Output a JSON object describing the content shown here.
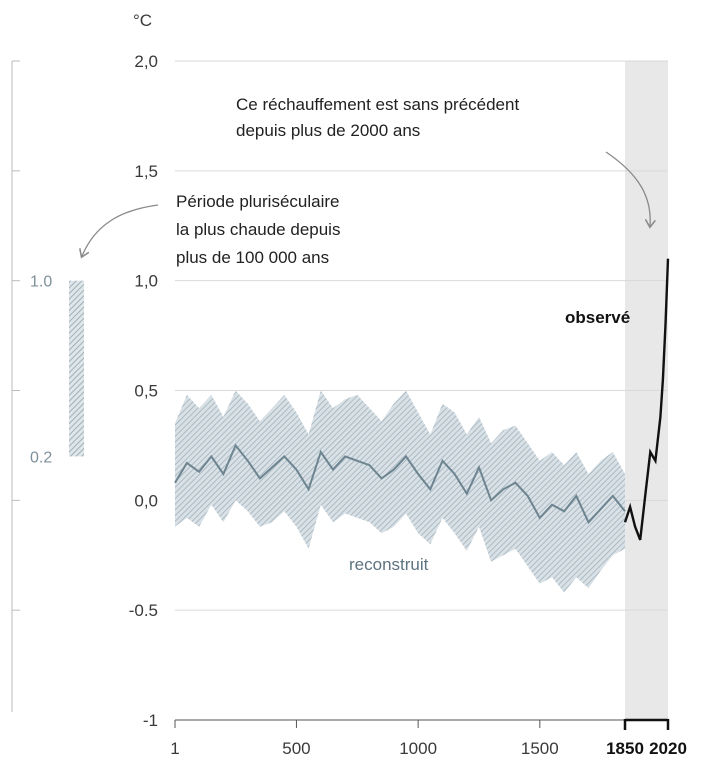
{
  "chart_data": {
    "type": "line",
    "unit": "°C",
    "ylim": [
      -1,
      2
    ],
    "xlim": [
      1,
      2020
    ],
    "y_ticks": [
      {
        "value": 2.0,
        "label": "2,0"
      },
      {
        "value": 1.5,
        "label": "1,5"
      },
      {
        "value": 1.0,
        "label": "1,0"
      },
      {
        "value": 0.5,
        "label": "0,5"
      },
      {
        "value": 0.0,
        "label": "0,0"
      },
      {
        "value": -0.5,
        "label": "-0.5"
      },
      {
        "value": -1.0,
        "label": "-1"
      }
    ],
    "x_ticks": [
      {
        "value": 1,
        "label": "1",
        "bold": false
      },
      {
        "value": 500,
        "label": "500",
        "bold": false
      },
      {
        "value": 1000,
        "label": "1000",
        "bold": false
      },
      {
        "value": 1500,
        "label": "1500",
        "bold": false
      },
      {
        "value": 1850,
        "label": "1850",
        "bold": true
      },
      {
        "value": 2020,
        "label": "2020",
        "bold": true
      }
    ],
    "highlight_range": [
      1850,
      2020
    ],
    "grid": true,
    "series": [
      {
        "name": "reconstruit",
        "color": "#6e8591",
        "band_color": "#b6c4cc",
        "x": [
          1,
          50,
          100,
          150,
          200,
          250,
          300,
          350,
          400,
          450,
          500,
          550,
          600,
          650,
          700,
          750,
          800,
          850,
          900,
          950,
          1000,
          1050,
          1100,
          1150,
          1200,
          1250,
          1300,
          1350,
          1400,
          1450,
          1500,
          1550,
          1600,
          1650,
          1700,
          1750,
          1800,
          1850
        ],
        "values": [
          0.08,
          0.17,
          0.13,
          0.2,
          0.12,
          0.25,
          0.18,
          0.1,
          0.15,
          0.2,
          0.14,
          0.05,
          0.22,
          0.14,
          0.2,
          0.18,
          0.16,
          0.1,
          0.14,
          0.2,
          0.12,
          0.05,
          0.18,
          0.12,
          0.03,
          0.15,
          0.0,
          0.05,
          0.08,
          0.02,
          -0.08,
          -0.02,
          -0.05,
          0.02,
          -0.1,
          -0.04,
          0.02,
          -0.05
        ],
        "lower": [
          -0.12,
          -0.08,
          -0.12,
          -0.02,
          -0.1,
          0.0,
          -0.05,
          -0.12,
          -0.1,
          -0.05,
          -0.12,
          -0.22,
          -0.02,
          -0.1,
          -0.06,
          -0.08,
          -0.1,
          -0.15,
          -0.12,
          -0.06,
          -0.15,
          -0.2,
          -0.08,
          -0.15,
          -0.23,
          -0.12,
          -0.28,
          -0.25,
          -0.22,
          -0.3,
          -0.38,
          -0.35,
          -0.42,
          -0.35,
          -0.4,
          -0.32,
          -0.25,
          -0.22
        ],
        "upper": [
          0.35,
          0.48,
          0.42,
          0.48,
          0.38,
          0.5,
          0.44,
          0.36,
          0.42,
          0.48,
          0.4,
          0.3,
          0.5,
          0.42,
          0.46,
          0.48,
          0.42,
          0.36,
          0.44,
          0.5,
          0.4,
          0.3,
          0.44,
          0.4,
          0.3,
          0.38,
          0.26,
          0.32,
          0.34,
          0.26,
          0.18,
          0.22,
          0.16,
          0.22,
          0.12,
          0.18,
          0.22,
          0.12
        ]
      },
      {
        "name": "observé",
        "color": "#111111",
        "x": [
          1850,
          1870,
          1890,
          1910,
          1930,
          1950,
          1970,
          1990,
          2000,
          2010,
          2020
        ],
        "values": [
          -0.1,
          -0.03,
          -0.12,
          -0.18,
          0.02,
          0.22,
          0.18,
          0.38,
          0.55,
          0.8,
          1.1
        ]
      }
    ],
    "annotations": [
      {
        "id": "unprecedented",
        "lines": [
          "Ce réchauffement est sans précédent",
          "depuis plus de 2000 ans"
        ]
      },
      {
        "id": "warm-period",
        "lines": [
          "Période pluriséculaire",
          "la plus chaude depuis",
          "plus de 100 000 ans"
        ]
      }
    ],
    "side_bar": {
      "ticks": [
        {
          "value": 1.0,
          "label": "1.0"
        },
        {
          "value": 0.2,
          "label": "0.2"
        }
      ],
      "range": [
        0.2,
        1.0
      ]
    }
  }
}
